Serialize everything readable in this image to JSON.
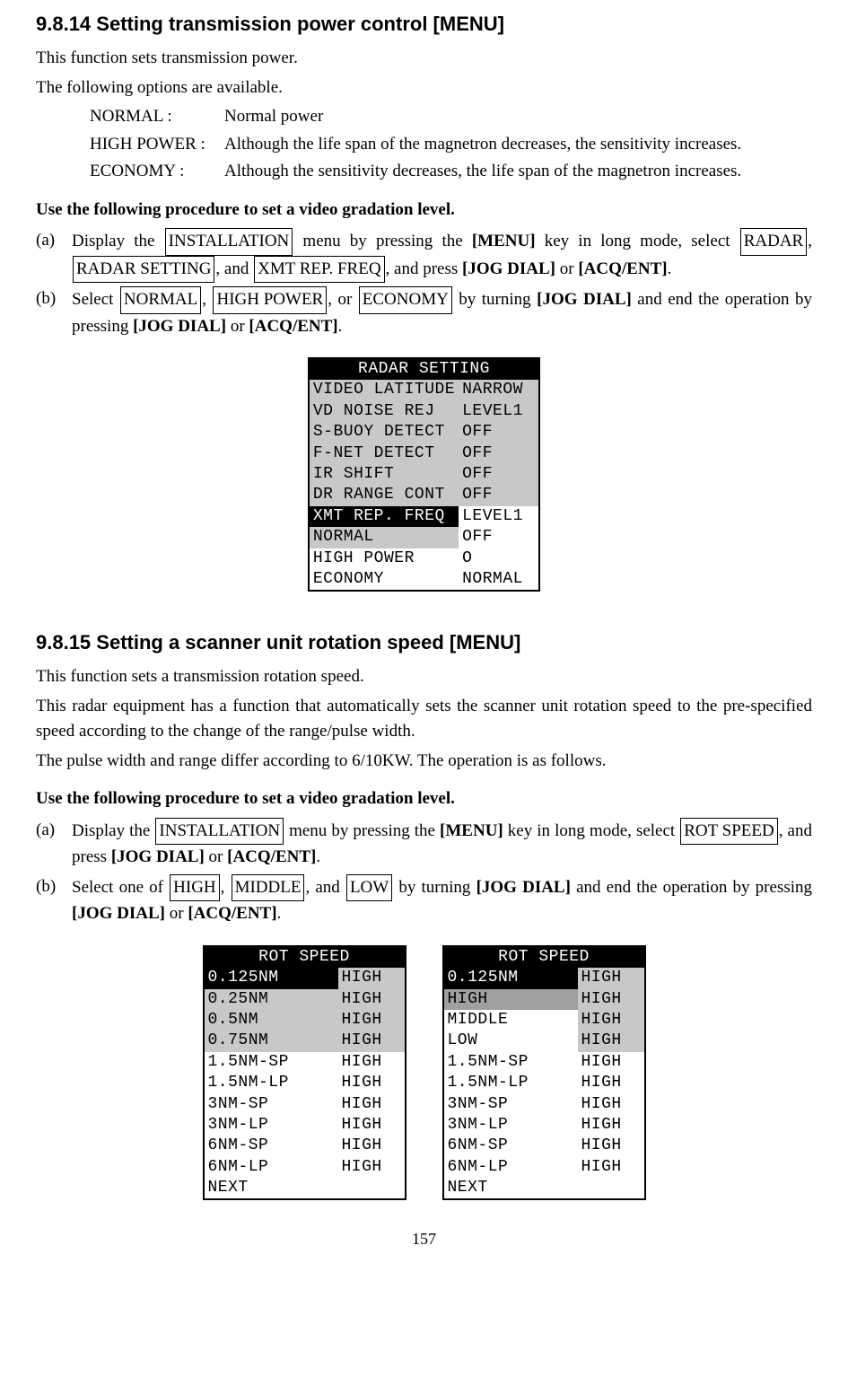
{
  "section1": {
    "title": "9.8.14   Setting transmission power control [MENU]",
    "intro1": "This function sets transmission power.",
    "intro2": "The following options are available.",
    "options": [
      {
        "label": "NORMAL :",
        "desc": "Normal power"
      },
      {
        "label": "HIGH POWER :",
        "desc": "Although the life span of the magnetron decreases, the sensitivity increases."
      },
      {
        "label": "ECONOMY :",
        "desc": "Although the sensitivity decreases, the life span of the magnetron increases."
      }
    ],
    "procedure_title": "Use the following procedure to set a video gradation level.",
    "step_a_label": "(a)",
    "step_a_pre": "Display the ",
    "step_a_box1": "INSTALLATION",
    "step_a_mid1": " menu by pressing the ",
    "step_a_bold1": "[MENU]",
    "step_a_mid2": " key in long mode, select ",
    "step_a_box2": "RADAR",
    "step_a_comma1": ", ",
    "step_a_box3": "RADAR SETTING",
    "step_a_comma2": ", and ",
    "step_a_box4": "XMT REP. FREQ",
    "step_a_comma3": ", and press ",
    "step_a_bold2": "[JOG DIAL]",
    "step_a_or": " or ",
    "step_a_bold3": "[ACQ/ENT]",
    "step_a_end": ".",
    "step_b_label": "(b)",
    "step_b_pre": "Select ",
    "step_b_box1": "NORMAL",
    "step_b_c1": ", ",
    "step_b_box2": "HIGH POWER",
    "step_b_c2": ", or ",
    "step_b_box3": "ECONOMY",
    "step_b_mid": " by turning ",
    "step_b_bold1": "[JOG DIAL]",
    "step_b_mid2": " and end the operation by pressing ",
    "step_b_bold2": "[JOG DIAL]",
    "step_b_or": " or ",
    "step_b_bold3": "[ACQ/ENT]",
    "step_b_end": "."
  },
  "radar_table": {
    "header": "RADAR SETTING",
    "rows": [
      {
        "c1": "VIDEO LATITUDE",
        "c2": "NARROW",
        "gray": true,
        "c1_inv": false
      },
      {
        "c1": "VD NOISE REJ",
        "c2": "LEVEL1",
        "gray": true,
        "c1_inv": false
      },
      {
        "c1": "S-BUOY DETECT",
        "c2": "OFF",
        "gray": true,
        "c1_inv": false
      },
      {
        "c1": "F-NET DETECT",
        "c2": "OFF",
        "gray": true,
        "c1_inv": false
      },
      {
        "c1": "IR SHIFT",
        "c2": "OFF",
        "gray": true,
        "c1_inv": false
      },
      {
        "c1": "DR RANGE CONT",
        "c2": "OFF",
        "gray": true,
        "c1_inv": false
      },
      {
        "c1": "XMT REP. FREQ",
        "c2": "LEVEL1",
        "gray": false,
        "c1_inv": true
      },
      {
        "c1": "NORMAL",
        "c2": "OFF",
        "gray": false,
        "c1_gray": true
      },
      {
        "c1": "HIGH POWER",
        "c2": "O",
        "gray": false
      },
      {
        "c1": "ECONOMY",
        "c2": "NORMAL",
        "gray": false
      }
    ]
  },
  "section2": {
    "title": "9.8.15   Setting a scanner unit rotation speed [MENU]",
    "intro1": "This function sets a transmission rotation speed.",
    "intro2": "This radar equipment has a function that automatically sets the scanner unit rotation speed to the pre-specified speed according to the change of the range/pulse width.",
    "intro3": "The pulse width and range differ according to 6/10KW.   The operation is as follows.",
    "procedure_title": "Use the following procedure to set a video gradation level.",
    "step_a_label": "(a)",
    "step_a_pre": "Display the ",
    "step_a_box1": "INSTALLATION",
    "step_a_mid1": " menu by pressing the ",
    "step_a_bold1": "[MENU]",
    "step_a_mid2": " key in long mode, select ",
    "step_a_box2": "ROT SPEED",
    "step_a_mid3": ", and press ",
    "step_a_bold2": "[JOG DIAL]",
    "step_a_or": " or ",
    "step_a_bold3": "[ACQ/ENT]",
    "step_a_end": ".",
    "step_b_label": "(b)",
    "step_b_pre": "Select one of ",
    "step_b_box1": "HIGH",
    "step_b_c1": ", ",
    "step_b_box2": "MIDDLE",
    "step_b_c2": ", and ",
    "step_b_box3": "LOW",
    "step_b_mid": " by turning ",
    "step_b_bold1": "[JOG DIAL]",
    "step_b_mid2": " and end the operation by pressing ",
    "step_b_bold2": "[JOG DIAL]",
    "step_b_or": " or ",
    "step_b_bold3": "[ACQ/ENT]",
    "step_b_end": "."
  },
  "rot_table1": {
    "header": "ROT SPEED",
    "rows": [
      {
        "c1": "0.125NM",
        "c2": "HIGH",
        "gray": true,
        "c1_inv": true
      },
      {
        "c1": "0.25NM",
        "c2": "HIGH",
        "gray": true
      },
      {
        "c1": "0.5NM",
        "c2": "HIGH",
        "gray": true
      },
      {
        "c1": "0.75NM",
        "c2": "HIGH",
        "gray": true
      },
      {
        "c1": "1.5NM-SP",
        "c2": "HIGH",
        "gray": false
      },
      {
        "c1": "1.5NM-LP",
        "c2": "HIGH",
        "gray": false
      },
      {
        "c1": "3NM-SP",
        "c2": "HIGH",
        "gray": false
      },
      {
        "c1": "3NM-LP",
        "c2": "HIGH",
        "gray": false
      },
      {
        "c1": "6NM-SP",
        "c2": "HIGH",
        "gray": false
      },
      {
        "c1": "6NM-LP",
        "c2": "HIGH",
        "gray": false
      },
      {
        "c1": "NEXT",
        "c2": "",
        "gray": false
      }
    ]
  },
  "rot_table2": {
    "header": "ROT SPEED",
    "rows": [
      {
        "c1": "0.125NM",
        "c2": "HIGH",
        "gray": true,
        "c1_inv": true
      },
      {
        "c1": "HIGH",
        "c2": "HIGH",
        "gray": true,
        "c1_gray_special": true
      },
      {
        "c1": "MIDDLE",
        "c2": "HIGH",
        "gray": true,
        "c1_white": true
      },
      {
        "c1": "LOW",
        "c2": "HIGH",
        "gray": true,
        "c1_white": true
      },
      {
        "c1": "1.5NM-SP",
        "c2": "HIGH",
        "gray": false
      },
      {
        "c1": "1.5NM-LP",
        "c2": "HIGH",
        "gray": false
      },
      {
        "c1": "3NM-SP",
        "c2": "HIGH",
        "gray": false
      },
      {
        "c1": "3NM-LP",
        "c2": "HIGH",
        "gray": false
      },
      {
        "c1": "6NM-SP",
        "c2": "HIGH",
        "gray": false
      },
      {
        "c1": "6NM-LP",
        "c2": "HIGH",
        "gray": false
      },
      {
        "c1": "NEXT",
        "c2": "",
        "gray": false
      }
    ]
  },
  "page_number": "157"
}
